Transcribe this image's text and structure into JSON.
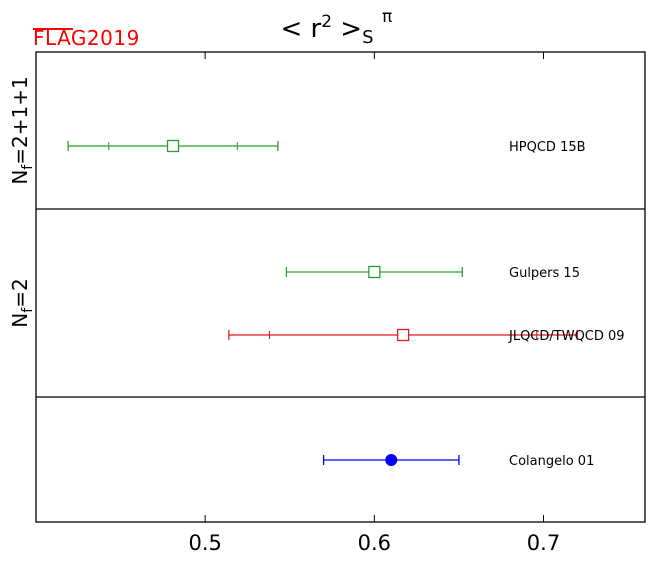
{
  "logo": {
    "text": "FLAG2019",
    "color": "#ff0000"
  },
  "chart_data": {
    "type": "scatter",
    "title": {
      "main": "< r",
      "sup": "2",
      "close": " >",
      "sub": "S",
      "sup2": "π"
    },
    "xlim": [
      0.4,
      0.76
    ],
    "xticks": [
      0.5,
      0.6,
      0.7
    ],
    "xtick_labels": [
      "0.5",
      "0.6",
      "0.7"
    ],
    "grid": false,
    "panels": [
      {
        "label": "N",
        "label_sub": "f",
        "label_rest": "=2+1+1",
        "points": [
          {
            "name": "HPQCD 15B",
            "value": 0.481,
            "err_stat_low": 0.038,
            "err_stat_high": 0.038,
            "err_tot_low": 0.062,
            "err_tot_high": 0.062,
            "color": "#2ca02c",
            "marker": "open-square"
          }
        ]
      },
      {
        "label": "N",
        "label_sub": "f",
        "label_rest": "=2",
        "points": [
          {
            "name": "Gulpers 15",
            "value": 0.6,
            "err_stat_low": 0.052,
            "err_stat_high": 0.052,
            "err_tot_low": 0.052,
            "err_tot_high": 0.052,
            "color": "#2ca02c",
            "marker": "open-square"
          },
          {
            "name": "JLQCD/TWQCD 09",
            "value": 0.617,
            "err_stat_low": 0.079,
            "err_stat_high": 0.079,
            "err_tot_low": 0.103,
            "err_tot_high": 0.103,
            "color": "#e41a1c",
            "marker": "open-square"
          }
        ]
      },
      {
        "label": "",
        "label_sub": "",
        "label_rest": "",
        "points": [
          {
            "name": "Colangelo 01",
            "value": 0.61,
            "err_stat_low": 0.04,
            "err_stat_high": 0.04,
            "err_tot_low": 0.04,
            "err_tot_high": 0.04,
            "color": "#0000ff",
            "marker": "filled-circle"
          }
        ]
      }
    ]
  }
}
